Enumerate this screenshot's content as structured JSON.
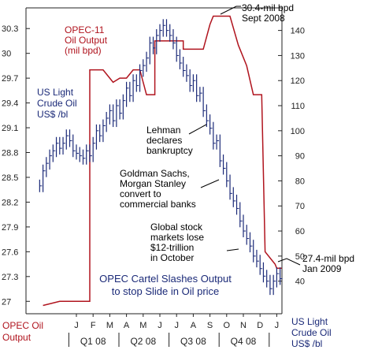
{
  "chart_data": {
    "type": "line",
    "title": "OPEC Cartel Slashes Output to stop Slide in Oil price",
    "title_lines": [
      "OPEC Cartel Slashes Output",
      "to stop Slide in Oil price"
    ],
    "grid": false,
    "legend": "none",
    "colors": {
      "opec": "#b0141e",
      "oil": "#1b2a78",
      "text": "#1b2a78",
      "axis": "#222222",
      "grid_bg": "#ffffff"
    },
    "left_axis": {
      "ylim": [
        26.85,
        30.55
      ],
      "ticks": [
        27,
        27.3,
        27.6,
        27.9,
        28.2,
        28.5,
        28.8,
        29.1,
        29.4,
        29.7,
        30,
        30.3
      ],
      "tick_labels": [
        "27",
        "27.3",
        "27.6",
        "27.9",
        "28.2",
        "28.5",
        "28.8",
        "29.1",
        "29.4",
        "29.7",
        "30",
        "30.3"
      ],
      "label_lines": [
        "OPEC Oil",
        "Output"
      ]
    },
    "right_axis": {
      "ylim": [
        27,
        149
      ],
      "ticks": [
        40,
        50,
        60,
        70,
        80,
        90,
        100,
        110,
        120,
        130,
        140
      ],
      "tick_labels": [
        "40",
        "50",
        "60",
        "70",
        "80",
        "90",
        "100",
        "110",
        "120",
        "130",
        "140"
      ],
      "label_lines": [
        "US Light",
        "Crude Oil",
        "US$ /bl"
      ]
    },
    "x_axis": {
      "months": [
        "J",
        "F",
        "M",
        "A",
        "M",
        "J",
        "J",
        "A",
        "S",
        "O",
        "N",
        "D",
        "J"
      ],
      "quarters": [
        "Q1 08",
        "Q2 08",
        "Q3 08",
        "Q4 08"
      ]
    },
    "series": [
      {
        "key": "opec",
        "name": "OPEC-11 Oil Output (mil bpd)",
        "name_lines": [
          "OPEC-11",
          "Oil Output",
          "(mil bpd)"
        ],
        "axis": "left",
        "x": [
          -2.0,
          -1.0,
          -0.1,
          -0.1,
          0.8,
          0.8,
          1.4,
          1.6,
          2.2,
          2.6,
          3.0,
          3.4,
          3.8,
          4.2,
          4.7,
          4.7,
          5.1,
          5.6,
          6.2,
          6.4,
          6.4,
          7.2,
          7.6,
          8.0,
          8.2,
          8.8,
          9.2,
          9.7,
          10.2,
          10.6,
          11.1,
          11.3,
          11.3,
          11.9,
          12.0,
          12.3
        ],
        "y": [
          26.95,
          27.0,
          27.0,
          27.0,
          27.0,
          29.8,
          29.8,
          29.8,
          29.65,
          29.7,
          29.7,
          29.8,
          29.8,
          29.5,
          29.5,
          30.15,
          30.15,
          30.15,
          30.15,
          30.15,
          30.05,
          30.05,
          30.05,
          30.35,
          30.45,
          30.45,
          30.45,
          30.1,
          29.85,
          29.5,
          29.5,
          27.6,
          27.6,
          27.45,
          27.4,
          27.4
        ]
      },
      {
        "key": "oil",
        "name": "US Light Crude Oil US$ /bl",
        "name_lines": [
          "US Light",
          "Crude Oil",
          "US$ /bl"
        ],
        "axis": "right",
        "x": [
          -2.2,
          -2.0,
          -1.8,
          -1.6,
          -1.4,
          -1.2,
          -1.0,
          -0.8,
          -0.6,
          -0.4,
          -0.2,
          0.0,
          0.2,
          0.4,
          0.6,
          0.8,
          1.0,
          1.2,
          1.4,
          1.6,
          1.8,
          2.0,
          2.2,
          2.4,
          2.6,
          2.8,
          3.0,
          3.2,
          3.4,
          3.6,
          3.8,
          4.0,
          4.2,
          4.4,
          4.6,
          4.8,
          5.0,
          5.2,
          5.4,
          5.6,
          5.8,
          6.0,
          6.2,
          6.4,
          6.6,
          6.8,
          7.0,
          7.2,
          7.4,
          7.6,
          7.8,
          8.0,
          8.2,
          8.4,
          8.6,
          8.8,
          9.0,
          9.2,
          9.4,
          9.6,
          9.8,
          10.0,
          10.2,
          10.4,
          10.6,
          10.8,
          11.0,
          11.2,
          11.4,
          11.6,
          11.8,
          12.0,
          12.2
        ],
        "y": [
          78,
          84,
          87,
          90,
          92,
          95,
          93,
          95,
          98,
          96,
          92,
          91,
          90,
          89,
          92,
          90,
          95,
          100,
          98,
          102,
          105,
          108,
          104,
          110,
          107,
          112,
          117,
          114,
          120,
          118,
          124,
          126,
          129,
          135,
          133,
          138,
          140,
          142,
          140,
          138,
          135,
          130,
          127,
          124,
          122,
          118,
          120,
          114,
          115,
          108,
          104,
          101,
          95,
          96,
          88,
          85,
          80,
          75,
          72,
          69,
          64,
          60,
          57,
          54,
          50,
          48,
          45,
          42,
          40,
          37,
          40,
          43,
          41
        ]
      }
    ],
    "annotations": {
      "opec_sept": [
        "30.4-mil bpd",
        "Sept 2008"
      ],
      "opec_jan": [
        "27.4-mil bpd",
        "Jan 2009"
      ],
      "lehman": [
        "Lehman",
        "declares",
        "bankruptcy"
      ],
      "goldman": [
        "Goldman Sachs,",
        "Morgan Stanley",
        "convert to",
        "commercial banks"
      ],
      "stocks": [
        "Global stock",
        "markets lose",
        "$12-trillion",
        "in October"
      ]
    }
  }
}
